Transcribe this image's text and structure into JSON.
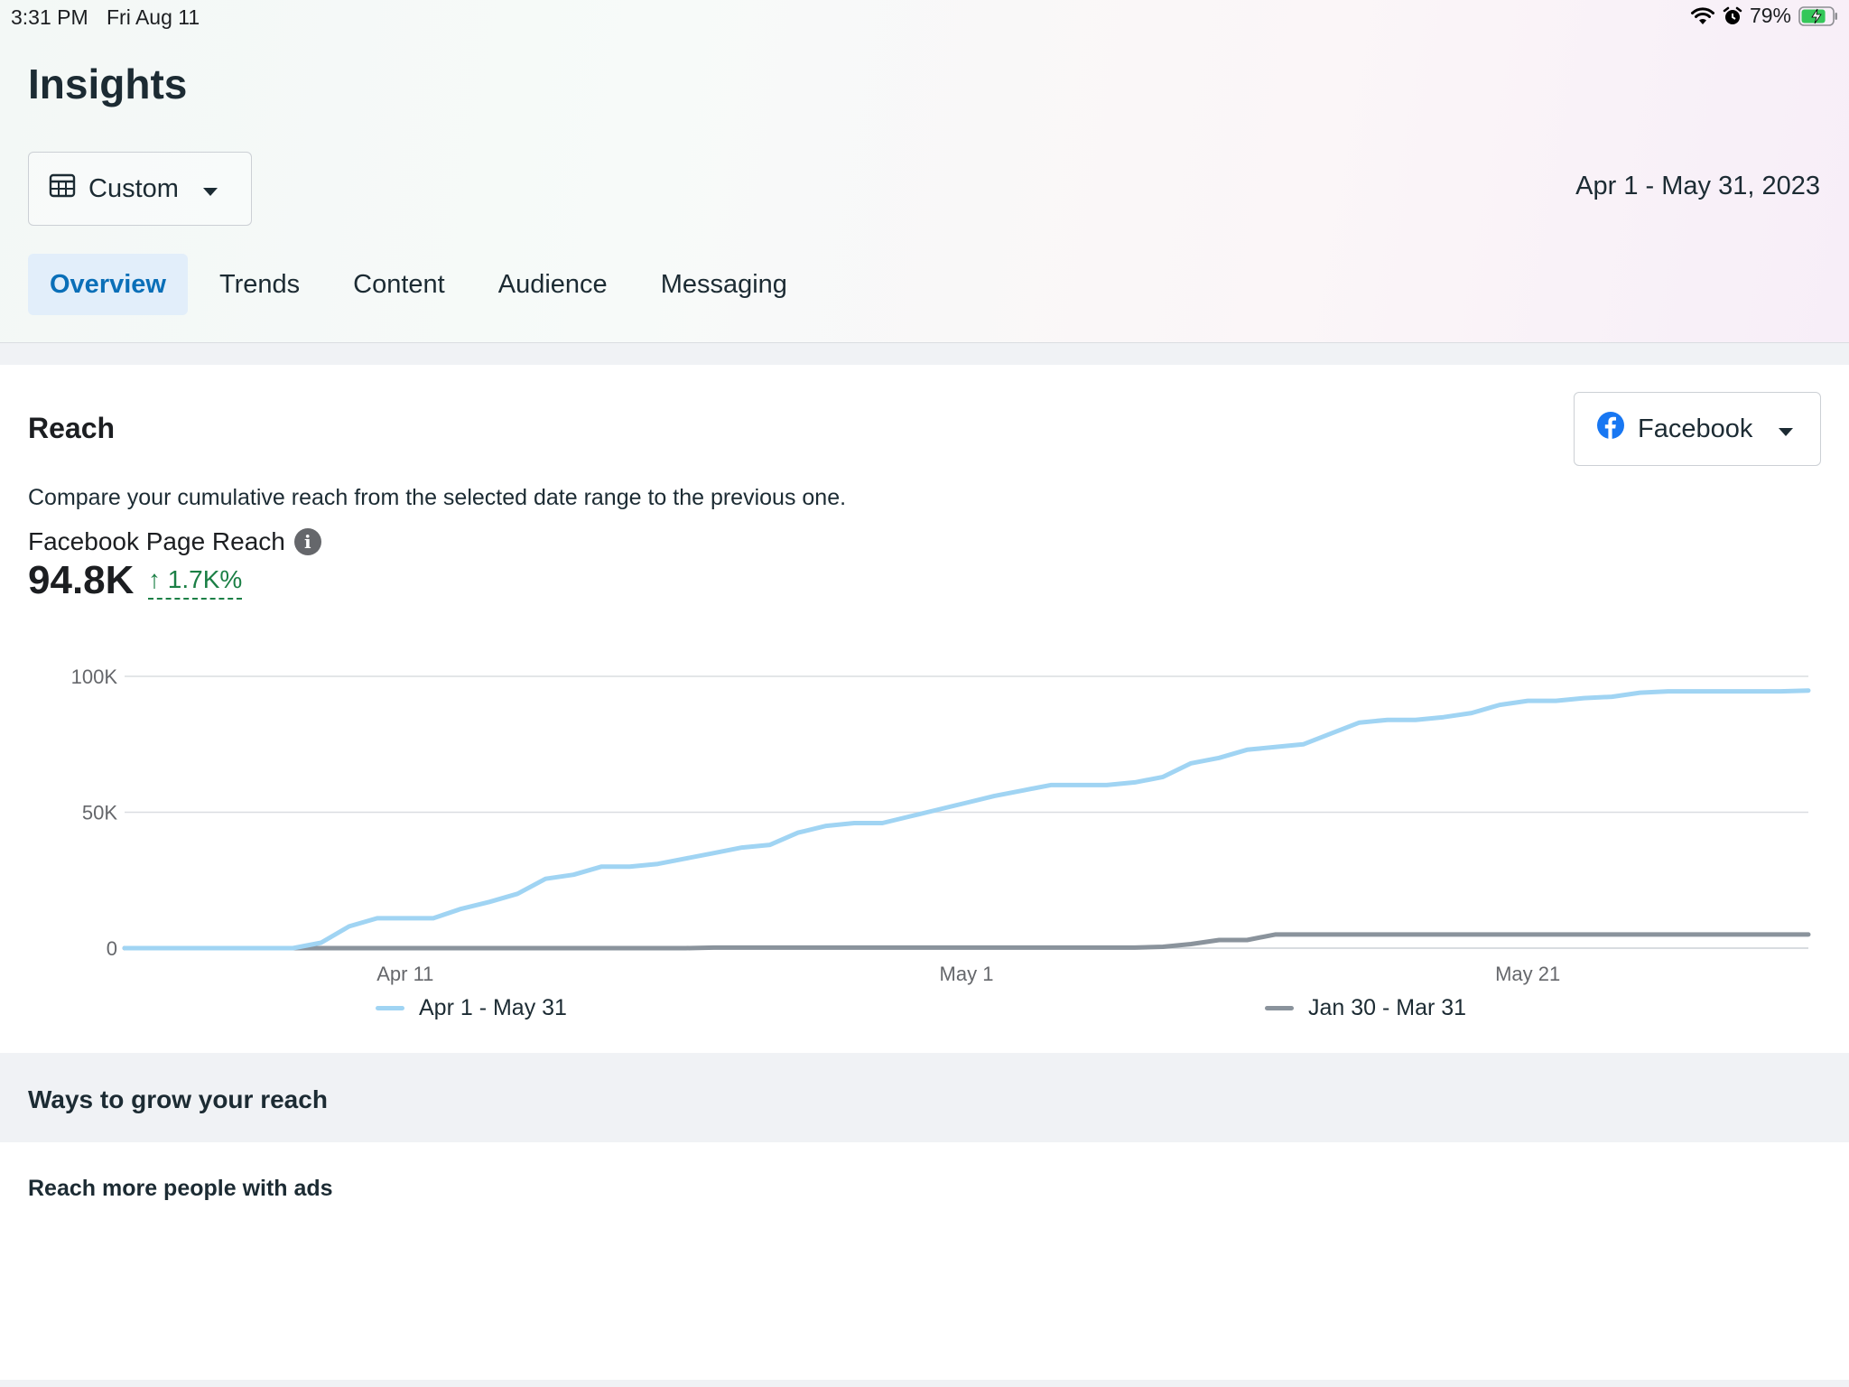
{
  "status_bar": {
    "time": "3:31 PM",
    "date": "Fri Aug 11",
    "battery": "79%",
    "battery_level": 0.79
  },
  "header": {
    "title": "Insights",
    "range_select": {
      "label": "Custom",
      "icon": "calendar-icon"
    },
    "date_range": "Apr 1 - May 31, 2023",
    "tabs": [
      {
        "label": "Overview",
        "active": true
      },
      {
        "label": "Trends",
        "active": false
      },
      {
        "label": "Content",
        "active": false
      },
      {
        "label": "Audience",
        "active": false
      },
      {
        "label": "Messaging",
        "active": false
      }
    ]
  },
  "reach": {
    "title": "Reach",
    "platform_select": {
      "label": "Facebook",
      "icon": "facebook-icon"
    },
    "description": "Compare your cumulative reach from the selected date range to the previous one.",
    "metric_label": "Facebook Page Reach",
    "metric_value": "94.8K",
    "metric_change": "↑ 1.7K%"
  },
  "chart_data": {
    "type": "line",
    "x_ticks": [
      "Apr 11",
      "May 1",
      "May 21"
    ],
    "y_ticks": [
      "0",
      "50K",
      "100K"
    ],
    "ylim": [
      0,
      100000
    ],
    "grid": true,
    "legend": "bottom",
    "series": [
      {
        "name": "Apr 1 - May 31",
        "color": "#a0d4f3",
        "values": [
          0,
          0,
          0,
          0,
          0,
          0,
          0,
          2000,
          8000,
          11000,
          11000,
          11000,
          14500,
          17000,
          20000,
          25500,
          27000,
          30000,
          30000,
          31000,
          33000,
          35000,
          37000,
          38000,
          42500,
          45000,
          46000,
          46000,
          48500,
          51000,
          53500,
          56000,
          58000,
          60000,
          60000,
          60000,
          61000,
          63000,
          68000,
          70000,
          73000,
          74000,
          75000,
          79000,
          83000,
          84000,
          84000,
          85000,
          86500,
          89500,
          91000,
          91000,
          92000,
          92500,
          94000,
          94500,
          94500,
          94500,
          94500,
          94500,
          94800
        ]
      },
      {
        "name": "Jan 30 - Mar 31",
        "color": "#8a939c",
        "values": [
          0,
          0,
          0,
          0,
          0,
          0,
          0,
          0,
          0,
          0,
          0,
          0,
          0,
          0,
          0,
          0,
          0,
          0,
          0,
          0,
          0,
          200,
          200,
          200,
          200,
          200,
          200,
          200,
          200,
          200,
          200,
          200,
          200,
          200,
          200,
          200,
          200,
          500,
          1500,
          3000,
          3000,
          5000,
          5000,
          5000,
          5000,
          5000,
          5000,
          5000,
          5000,
          5000,
          5000,
          5000,
          5000,
          5000,
          5000,
          5000,
          5000,
          5000,
          5000,
          5000,
          5000
        ]
      }
    ]
  },
  "grow": {
    "title": "Ways to grow your reach",
    "ads_title": "Reach more people with ads"
  }
}
